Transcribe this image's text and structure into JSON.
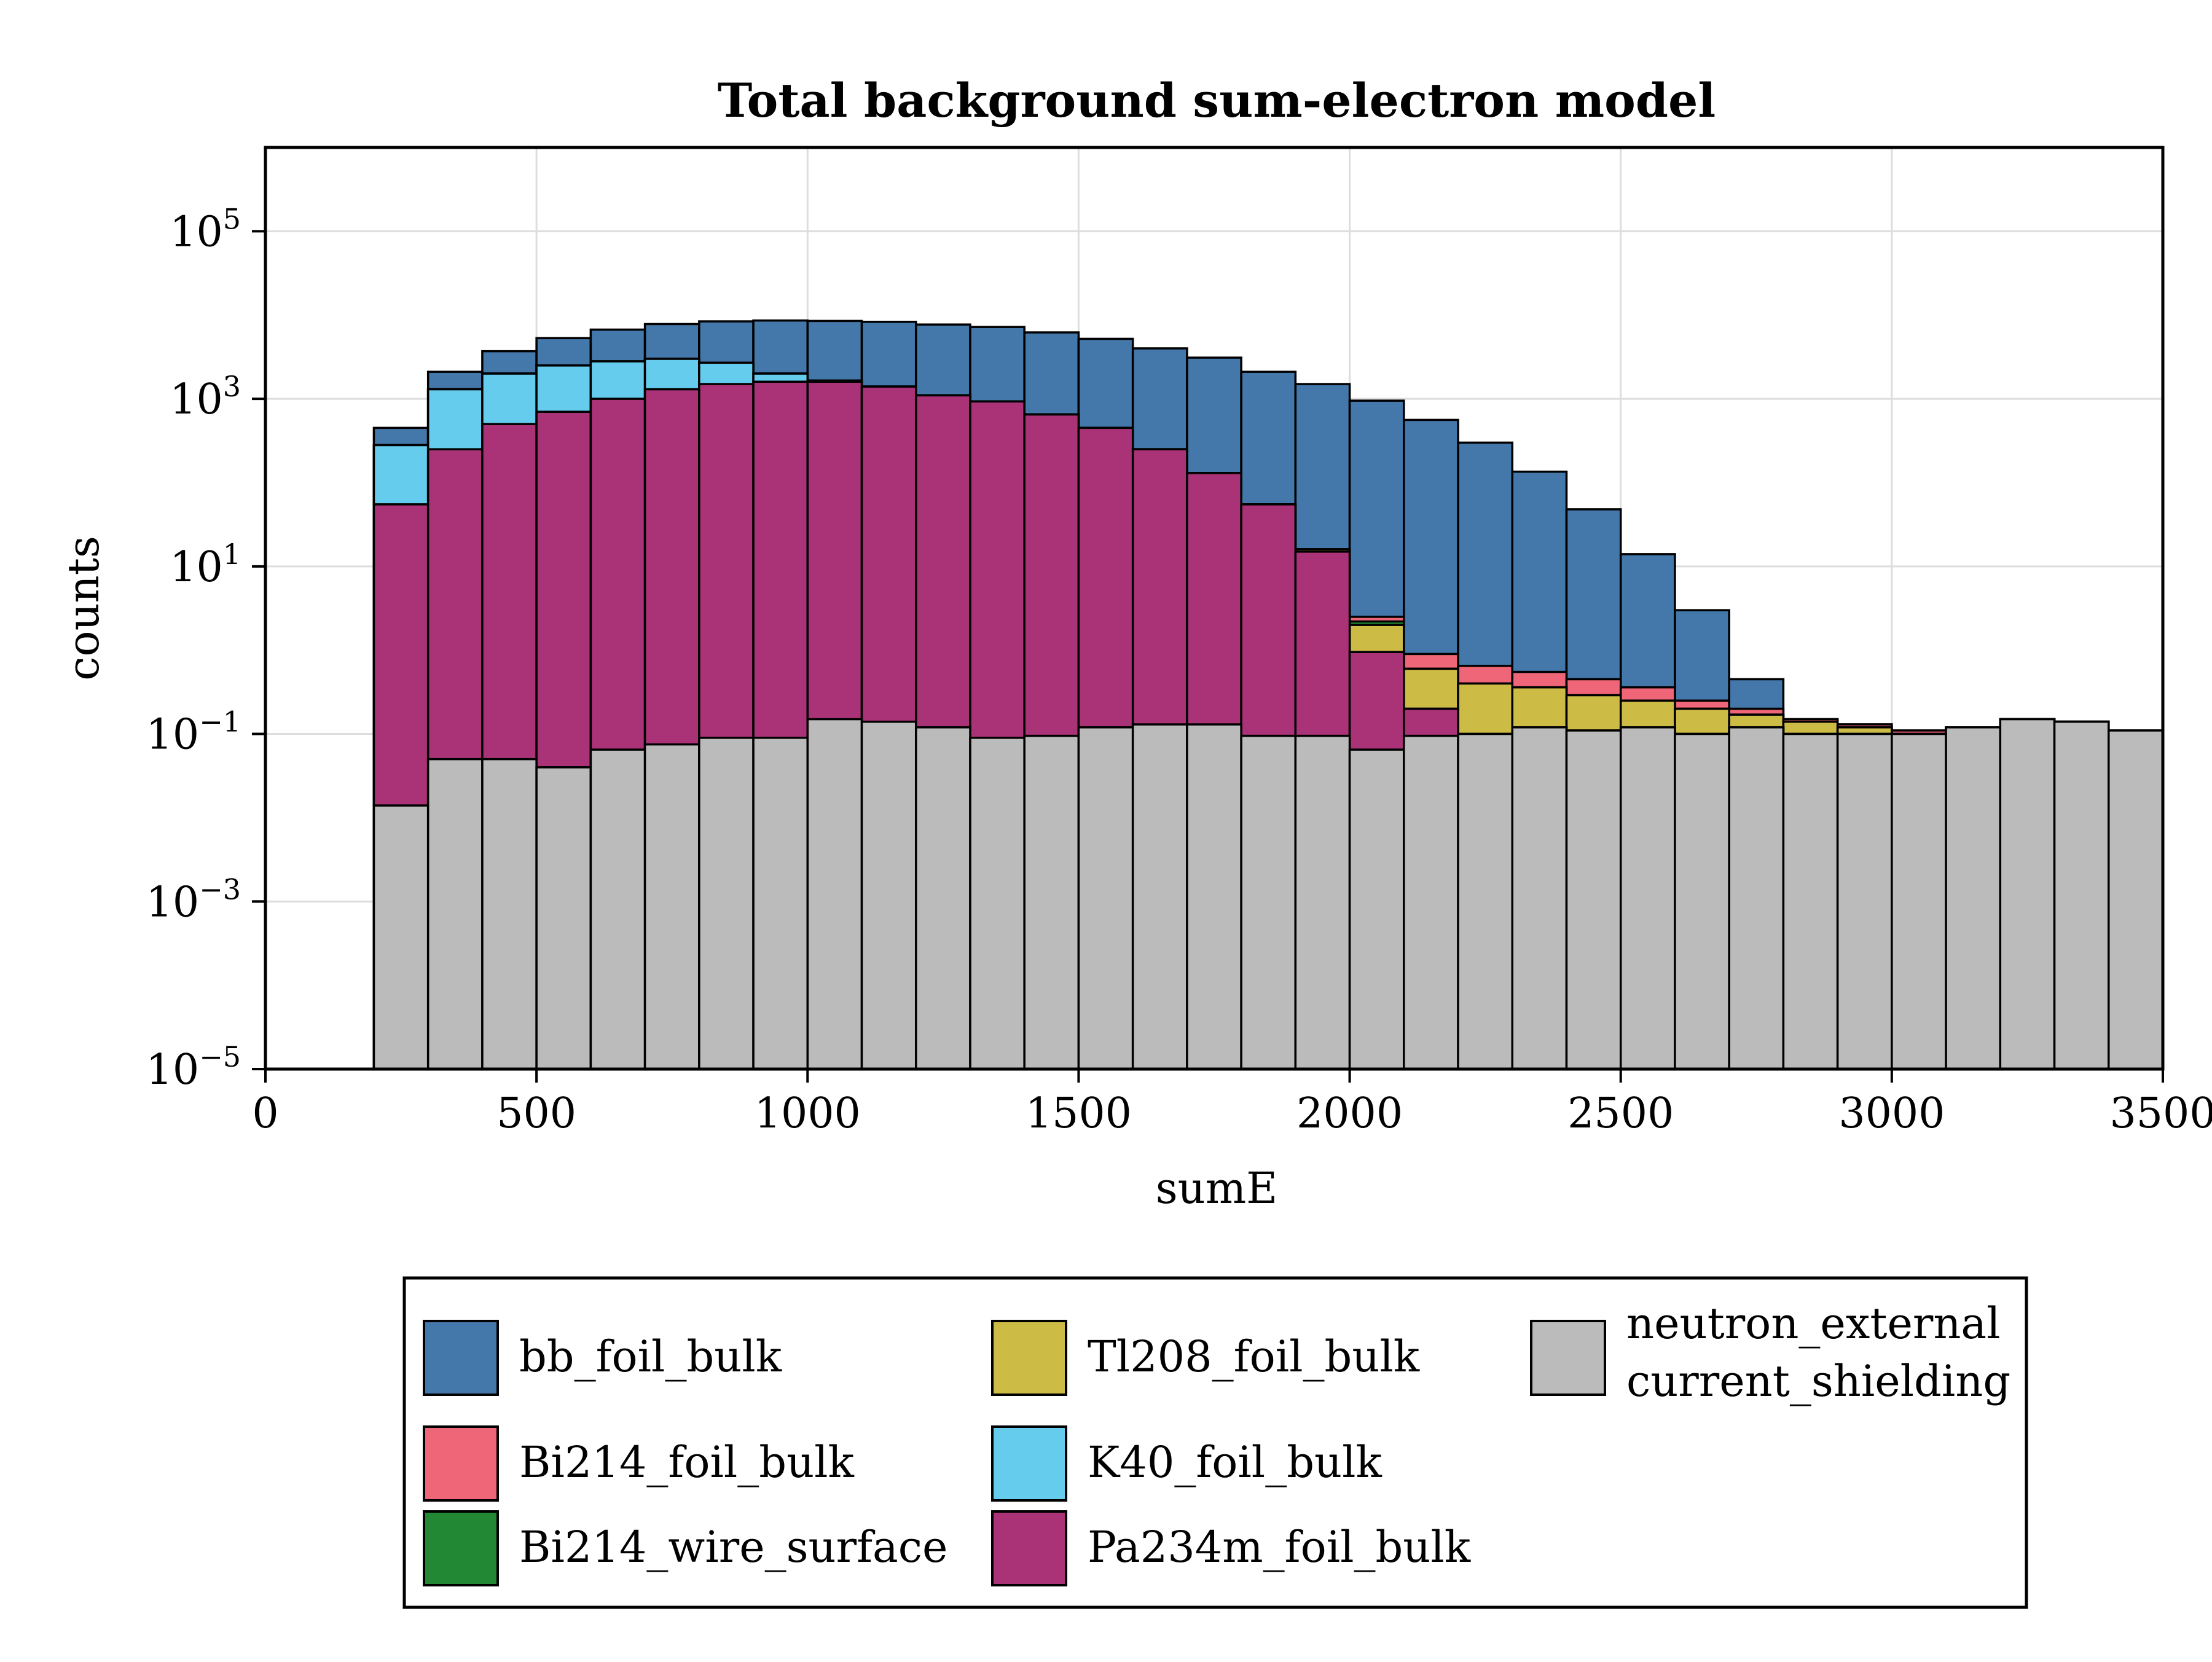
{
  "chart_data": {
    "type": "bar",
    "stacked": true,
    "title": "Total background sum-electron model",
    "xlabel": "sumE",
    "ylabel": "counts",
    "xlim": [
      0,
      3500
    ],
    "ylim": [
      1e-05,
      1000000.0
    ],
    "yscale": "log",
    "grid": true,
    "legend_position": "bottom",
    "x_ticks": [
      "0",
      "500",
      "1000",
      "1500",
      "2000",
      "2500",
      "3000",
      "3500"
    ],
    "x_tick_values": [
      0,
      500,
      1000,
      1500,
      2000,
      2500,
      3000,
      3500
    ],
    "y_ticks": [
      {
        "value": 100000.0,
        "base": "10",
        "exp": "5"
      },
      {
        "value": 1000.0,
        "base": "10",
        "exp": "3"
      },
      {
        "value": 10.0,
        "base": "10",
        "exp": "1"
      },
      {
        "value": 0.1,
        "base": "10",
        "exp": "−1"
      },
      {
        "value": 0.001,
        "base": "10",
        "exp": "−3"
      },
      {
        "value": 1e-05,
        "base": "10",
        "exp": "−5"
      }
    ],
    "bin_edges": [
      200,
      300,
      400,
      500,
      600,
      700,
      800,
      900,
      1000,
      1100,
      1200,
      1300,
      1400,
      1500,
      1600,
      1700,
      1800,
      1900,
      2000,
      2100,
      2200,
      2300,
      2400,
      2500,
      2600,
      2700,
      2800,
      2900,
      3000,
      3100,
      3200,
      3300,
      3400,
      3500
    ],
    "cumulative_tops": true,
    "series": [
      {
        "name": "neutron_external\ncurrent_shielding",
        "color": "#bbbbbb",
        "values": [
          0.014,
          0.05,
          0.05,
          0.04,
          0.065,
          0.075,
          0.09,
          0.09,
          0.15,
          0.14,
          0.12,
          0.09,
          0.095,
          0.12,
          0.13,
          0.13,
          0.095,
          0.095,
          0.065,
          0.095,
          0.1,
          0.12,
          0.11,
          0.12,
          0.1,
          0.12,
          0.1,
          0.1,
          0.1,
          0.12,
          0.15,
          0.14,
          0.11
        ]
      },
      {
        "name": "Pa234m_foil_bulk",
        "color": "#aa3377",
        "values": [
          55,
          250,
          500,
          700,
          1000,
          1300,
          1500,
          1600,
          1600,
          1400,
          1100,
          930,
          650,
          450,
          250,
          130,
          55,
          15,
          0.95,
          0.2,
          0.1,
          0.12,
          0.11,
          0.12,
          0.1,
          0.12,
          0.1,
          0.1,
          0.1,
          0.12,
          0.15,
          0.14,
          0.11
        ]
      },
      {
        "name": "K40_foil_bulk",
        "color": "#66ccee",
        "values": [
          280,
          1300,
          2000,
          2500,
          2800,
          3000,
          2700,
          2000,
          1600,
          1400,
          1100,
          930,
          650,
          450,
          250,
          130,
          55,
          15,
          0.95,
          0.2,
          0.1,
          0.12,
          0.11,
          0.12,
          0.1,
          0.12,
          0.1,
          0.1,
          0.1,
          0.12,
          0.15,
          0.14,
          0.11
        ]
      },
      {
        "name": "Tl208_foil_bulk",
        "color": "#ccbb44",
        "values": [
          280,
          1300,
          2000,
          2500,
          2800,
          3000,
          2700,
          2000,
          1650,
          1400,
          1100,
          930,
          650,
          450,
          250,
          130,
          55,
          16,
          2.0,
          0.6,
          0.4,
          0.36,
          0.29,
          0.25,
          0.2,
          0.17,
          0.14,
          0.12,
          0.1,
          0.12,
          0.15,
          0.14,
          0.11
        ]
      },
      {
        "name": "Bi214_wire_surface",
        "color": "#228833",
        "values": [
          280,
          1300,
          2000,
          2500,
          2800,
          3000,
          2700,
          2000,
          1650,
          1400,
          1100,
          930,
          650,
          450,
          250,
          130,
          55,
          16,
          2.2,
          0.6,
          0.4,
          0.36,
          0.29,
          0.25,
          0.2,
          0.17,
          0.14,
          0.12,
          0.1,
          0.12,
          0.15,
          0.14,
          0.11
        ]
      },
      {
        "name": "Bi214_foil_bulk",
        "color": "#ee6677",
        "values": [
          280,
          1300,
          2000,
          2500,
          2800,
          3000,
          2700,
          2000,
          1650,
          1400,
          1100,
          930,
          650,
          450,
          250,
          130,
          55,
          16,
          2.5,
          0.9,
          0.65,
          0.55,
          0.45,
          0.36,
          0.25,
          0.2,
          0.15,
          0.13,
          0.11,
          0.12,
          0.15,
          0.14,
          0.11
        ]
      },
      {
        "name": "bb_foil_bulk",
        "color": "#4477aa",
        "values": [
          450,
          2100,
          3700,
          5300,
          6700,
          7800,
          8400,
          8600,
          8500,
          8300,
          7700,
          7200,
          6200,
          5200,
          4000,
          3100,
          2100,
          1500,
          950,
          560,
          300,
          135,
          48,
          14,
          3,
          0.45,
          0.15,
          0.13,
          0.11,
          0.12,
          0.15,
          0.14,
          0.11
        ]
      }
    ],
    "legend_entries": [
      {
        "label": "bb_foil_bulk",
        "color": "#4477aa",
        "col": 0,
        "row": 0
      },
      {
        "label": "Bi214_foil_bulk",
        "color": "#ee6677",
        "col": 0,
        "row": 1
      },
      {
        "label": "Bi214_wire_surface",
        "color": "#228833",
        "col": 0,
        "row": 2
      },
      {
        "label": "Tl208_foil_bulk",
        "color": "#ccbb44",
        "col": 1,
        "row": 0
      },
      {
        "label": "K40_foil_bulk",
        "color": "#66ccee",
        "col": 1,
        "row": 1
      },
      {
        "label": "Pa234m_foil_bulk",
        "color": "#aa3377",
        "col": 1,
        "row": 2
      },
      {
        "label": "neutron_external\ncurrent_shielding",
        "color": "#bbbbbb",
        "col": 2,
        "row": 0
      }
    ]
  }
}
